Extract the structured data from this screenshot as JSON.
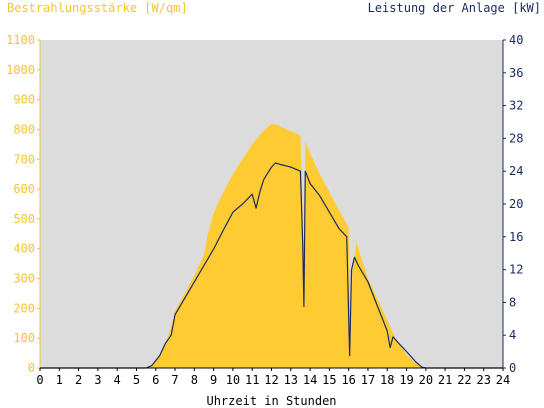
{
  "chart_data": {
    "type": "area",
    "left_axis_label": "Bestrahlungsstärke [W/qm]",
    "right_axis_label": "Leistung der Anlage [kW]",
    "xlabel": "Uhrzeit in Stunden",
    "xlim": [
      0,
      24
    ],
    "ylim_left": [
      0,
      1100
    ],
    "ylim_right": [
      0,
      40
    ],
    "x_ticks": [
      0,
      1,
      2,
      3,
      4,
      5,
      6,
      7,
      8,
      9,
      10,
      11,
      12,
      13,
      14,
      15,
      16,
      17,
      18,
      19,
      20,
      21,
      22,
      23,
      24
    ],
    "y_ticks_left": [
      0,
      100,
      200,
      300,
      400,
      500,
      600,
      700,
      800,
      900,
      1000,
      1100
    ],
    "y_ticks_right": [
      0,
      4,
      8,
      12,
      16,
      20,
      24,
      28,
      32,
      36,
      40
    ],
    "grid": false,
    "colors": {
      "plot_background": "#dcdcdc",
      "irradiance_fill": "#ffcb33",
      "power_line": "#1b2a5c",
      "left_axis": "#f5c431",
      "right_axis": "#1b2a5c"
    },
    "series": [
      {
        "axis": "left",
        "style": "area",
        "points": [
          [
            0,
            0
          ],
          [
            5.5,
            0
          ],
          [
            5.8,
            10
          ],
          [
            6.2,
            40
          ],
          [
            6.5,
            80
          ],
          [
            6.8,
            140
          ],
          [
            7.0,
            190
          ],
          [
            7.5,
            250
          ],
          [
            8.0,
            310
          ],
          [
            8.5,
            380
          ],
          [
            8.7,
            450
          ],
          [
            9.0,
            520
          ],
          [
            9.5,
            590
          ],
          [
            10.0,
            650
          ],
          [
            10.5,
            700
          ],
          [
            11.0,
            750
          ],
          [
            11.5,
            790
          ],
          [
            12.0,
            820
          ],
          [
            12.3,
            815
          ],
          [
            12.6,
            805
          ],
          [
            13.0,
            795
          ],
          [
            13.5,
            780
          ],
          [
            13.62,
            520
          ],
          [
            13.7,
            300
          ],
          [
            13.75,
            760
          ],
          [
            14.0,
            720
          ],
          [
            14.5,
            650
          ],
          [
            15.0,
            590
          ],
          [
            15.5,
            530
          ],
          [
            16.0,
            470
          ],
          [
            16.1,
            90
          ],
          [
            16.2,
            330
          ],
          [
            16.4,
            420
          ],
          [
            16.7,
            360
          ],
          [
            17.0,
            300
          ],
          [
            17.5,
            230
          ],
          [
            18.0,
            160
          ],
          [
            18.5,
            90
          ],
          [
            19.0,
            45
          ],
          [
            19.5,
            15
          ],
          [
            19.8,
            3
          ],
          [
            20.0,
            0
          ],
          [
            24,
            0
          ]
        ]
      },
      {
        "axis": "right",
        "style": "line",
        "points": [
          [
            0,
            0
          ],
          [
            5.5,
            0
          ],
          [
            5.8,
            0.3
          ],
          [
            6.2,
            1.5
          ],
          [
            6.5,
            3.0
          ],
          [
            6.8,
            4.0
          ],
          [
            7.0,
            6.5
          ],
          [
            7.5,
            8.5
          ],
          [
            8.0,
            10.5
          ],
          [
            8.5,
            12.5
          ],
          [
            9.0,
            14.5
          ],
          [
            9.5,
            16.8
          ],
          [
            10.0,
            19.0
          ],
          [
            10.5,
            20.0
          ],
          [
            11.0,
            21.2
          ],
          [
            11.2,
            19.5
          ],
          [
            11.4,
            21.5
          ],
          [
            11.6,
            23.0
          ],
          [
            12.0,
            24.5
          ],
          [
            12.2,
            25.0
          ],
          [
            12.5,
            24.8
          ],
          [
            13.0,
            24.5
          ],
          [
            13.5,
            24.0
          ],
          [
            13.62,
            15.0
          ],
          [
            13.68,
            7.5
          ],
          [
            13.75,
            24.0
          ],
          [
            14.0,
            22.5
          ],
          [
            14.5,
            21.0
          ],
          [
            15.0,
            19.0
          ],
          [
            15.5,
            17.0
          ],
          [
            15.9,
            16.0
          ],
          [
            16.05,
            1.5
          ],
          [
            16.15,
            12.0
          ],
          [
            16.3,
            13.5
          ],
          [
            16.5,
            12.5
          ],
          [
            17.0,
            10.5
          ],
          [
            17.5,
            7.5
          ],
          [
            18.0,
            4.5
          ],
          [
            18.15,
            2.5
          ],
          [
            18.3,
            3.8
          ],
          [
            18.6,
            3.0
          ],
          [
            19.0,
            2.0
          ],
          [
            19.5,
            0.7
          ],
          [
            19.8,
            0.1
          ],
          [
            20.0,
            0
          ],
          [
            24,
            0
          ]
        ]
      }
    ]
  }
}
